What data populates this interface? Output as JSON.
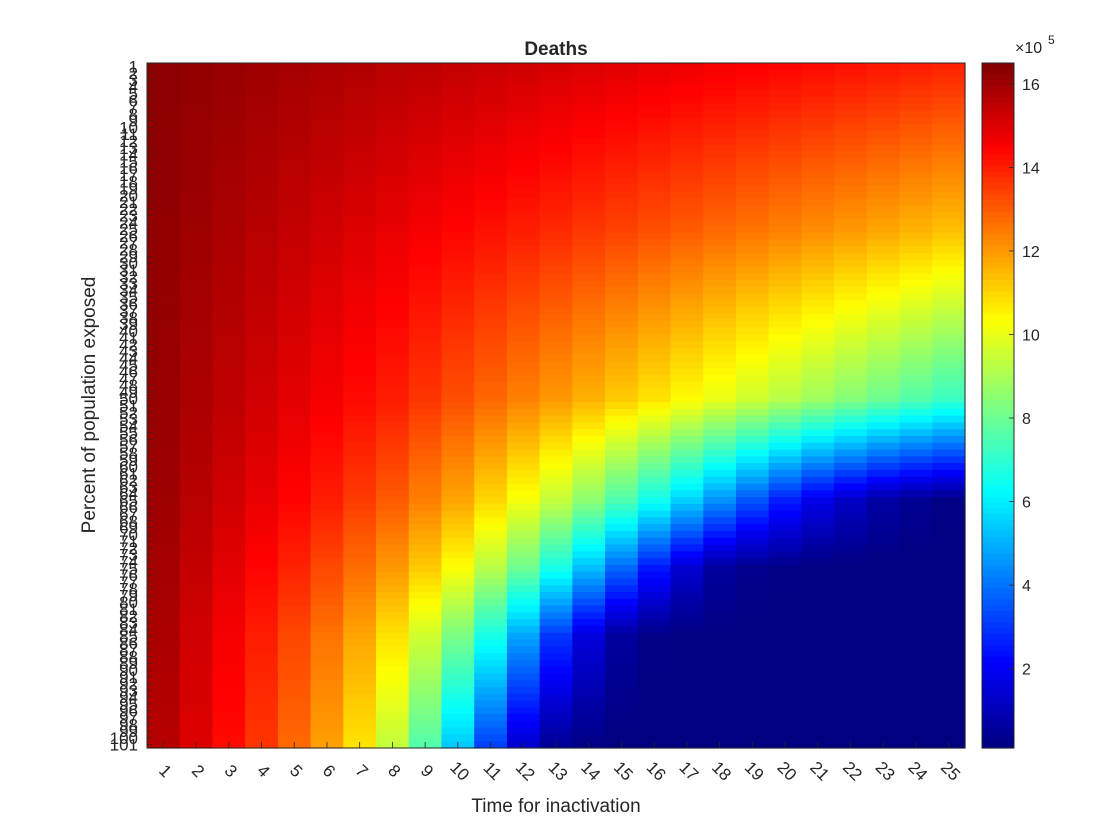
{
  "chart_data": {
    "type": "heatmap",
    "title": "Deaths",
    "xlabel": "Time for inactivation",
    "ylabel": "Percent of population exposed",
    "x_categories": [
      1,
      2,
      3,
      4,
      5,
      6,
      7,
      8,
      9,
      10,
      11,
      12,
      13,
      14,
      15,
      16,
      17,
      18,
      19,
      20,
      21,
      22,
      23,
      24,
      25
    ],
    "y_range": [
      1,
      101
    ],
    "y_tick_labels": [
      1,
      2,
      3,
      4,
      5,
      6,
      7,
      8,
      9,
      10,
      11,
      12,
      13,
      14,
      15,
      16,
      17,
      18,
      19,
      20,
      21,
      22,
      23,
      24,
      25,
      26,
      27,
      28,
      29,
      30,
      31,
      32,
      33,
      34,
      35,
      36,
      37,
      38,
      39,
      40,
      41,
      42,
      43,
      44,
      45,
      46,
      47,
      48,
      49,
      50,
      51,
      52,
      53,
      54,
      55,
      56,
      57,
      58,
      59,
      60,
      61,
      62,
      63,
      64,
      65,
      66,
      67,
      68,
      69,
      70,
      71,
      72,
      73,
      74,
      75,
      76,
      77,
      78,
      79,
      80,
      81,
      82,
      83,
      84,
      85,
      86,
      87,
      88,
      89,
      90,
      91,
      92,
      93,
      94,
      95,
      96,
      97,
      98,
      99,
      100,
      101
    ],
    "colormap": "jet",
    "value_range": [
      0.1,
      16.5
    ],
    "value_exponent_label": "×10",
    "value_exponent_power": "5",
    "colorbar_ticks": [
      2,
      4,
      6,
      8,
      10,
      12,
      14,
      16
    ],
    "row_estimates": {
      "y": [
        1,
        25,
        50,
        65,
        75,
        85,
        101
      ],
      "values_by_x": [
        [
          16.3,
          16.2,
          16.1,
          16.0,
          15.9,
          15.8,
          15.7,
          15.6,
          15.5,
          15.4,
          15.3,
          15.2,
          15.1,
          15.0,
          14.9,
          14.8,
          14.7,
          14.6,
          14.5,
          14.4,
          14.3,
          14.2,
          14.1,
          14.0,
          13.9
        ],
        [
          16.2,
          16.0,
          15.8,
          15.6,
          15.4,
          15.2,
          15.0,
          14.8,
          14.6,
          14.4,
          14.2,
          14.0,
          13.8,
          13.6,
          13.4,
          13.2,
          13.0,
          12.8,
          12.6,
          12.4,
          12.2,
          12.0,
          11.8,
          11.6,
          11.4
        ],
        [
          16.1,
          15.8,
          15.5,
          15.2,
          14.9,
          14.6,
          14.3,
          14.0,
          13.6,
          13.2,
          12.8,
          12.4,
          12.0,
          11.6,
          11.2,
          10.8,
          10.4,
          10.0,
          9.6,
          9.2,
          8.8,
          8.4,
          8.0,
          7.6,
          7.2
        ],
        [
          16.0,
          15.6,
          15.2,
          14.8,
          14.4,
          14.0,
          13.5,
          13.0,
          12.4,
          11.8,
          11.0,
          10.2,
          9.4,
          8.5,
          7.5,
          6.5,
          5.5,
          4.5,
          3.5,
          2.6,
          1.8,
          1.2,
          0.7,
          0.4,
          0.2
        ],
        [
          15.9,
          15.4,
          14.9,
          14.4,
          13.9,
          13.3,
          12.7,
          12.0,
          11.2,
          10.3,
          9.2,
          8.0,
          6.6,
          5.2,
          3.8,
          2.5,
          1.4,
          0.6,
          0.3,
          0.2,
          0.1,
          0.1,
          0.1,
          0.1,
          0.1
        ],
        [
          15.8,
          15.2,
          14.6,
          14.0,
          13.3,
          12.6,
          11.8,
          10.8,
          9.6,
          8.2,
          6.6,
          4.8,
          3.0,
          1.6,
          0.6,
          0.2,
          0.1,
          0.1,
          0.1,
          0.1,
          0.1,
          0.1,
          0.1,
          0.1,
          0.1
        ],
        [
          15.6,
          15.0,
          14.3,
          13.6,
          12.8,
          11.9,
          10.8,
          9.4,
          7.6,
          5.4,
          3.2,
          1.4,
          0.5,
          0.2,
          0.1,
          0.1,
          0.1,
          0.1,
          0.1,
          0.1,
          0.1,
          0.1,
          0.1,
          0.1,
          0.1
        ]
      ]
    }
  }
}
